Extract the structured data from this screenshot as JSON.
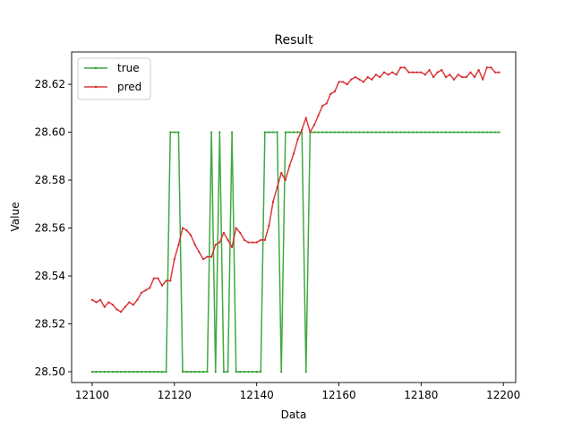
{
  "chart_data": {
    "type": "line",
    "title": "Result",
    "xlabel": "Data",
    "ylabel": "Value",
    "xlim": [
      12095,
      12203
    ],
    "ylim": [
      28.4955,
      28.6335
    ],
    "xticks": [
      12100,
      12120,
      12140,
      12160,
      12180,
      12200
    ],
    "xtick_labels": [
      "12100",
      "12120",
      "12140",
      "12160",
      "12180",
      "12200"
    ],
    "yticks": [
      28.5,
      28.52,
      28.54,
      28.56,
      28.58,
      28.6,
      28.62
    ],
    "ytick_labels": [
      "28.50",
      "28.52",
      "28.54",
      "28.56",
      "28.58",
      "28.60",
      "28.62"
    ],
    "grid": false,
    "legend_position": "upper-left",
    "x_start": 12100,
    "series": [
      {
        "name": "true",
        "color": "#2ca02c",
        "values": [
          28.5,
          28.5,
          28.5,
          28.5,
          28.5,
          28.5,
          28.5,
          28.5,
          28.5,
          28.5,
          28.5,
          28.5,
          28.5,
          28.5,
          28.5,
          28.5,
          28.5,
          28.5,
          28.5,
          28.6,
          28.6,
          28.6,
          28.5,
          28.5,
          28.5,
          28.5,
          28.5,
          28.5,
          28.5,
          28.6,
          28.5,
          28.6,
          28.5,
          28.5,
          28.6,
          28.5,
          28.5,
          28.5,
          28.5,
          28.5,
          28.5,
          28.5,
          28.6,
          28.6,
          28.6,
          28.6,
          28.5,
          28.6,
          28.6,
          28.6,
          28.6,
          28.6,
          28.5,
          28.6,
          28.6,
          28.6,
          28.6,
          28.6,
          28.6,
          28.6,
          28.6,
          28.6,
          28.6,
          28.6,
          28.6,
          28.6,
          28.6,
          28.6,
          28.6,
          28.6,
          28.6,
          28.6,
          28.6,
          28.6,
          28.6,
          28.6,
          28.6,
          28.6,
          28.6,
          28.6,
          28.6,
          28.6,
          28.6,
          28.6,
          28.6,
          28.6,
          28.6,
          28.6,
          28.6,
          28.6,
          28.6,
          28.6,
          28.6,
          28.6,
          28.6,
          28.6,
          28.6,
          28.6,
          28.6,
          28.6
        ]
      },
      {
        "name": "pred",
        "color": "#d62728",
        "values": [
          28.53,
          28.529,
          28.53,
          28.527,
          28.529,
          28.528,
          28.526,
          28.525,
          28.527,
          28.529,
          28.528,
          28.53,
          28.533,
          28.534,
          28.535,
          28.539,
          28.539,
          28.536,
          28.538,
          28.538,
          28.547,
          28.553,
          28.56,
          28.559,
          28.557,
          28.553,
          28.55,
          28.547,
          28.548,
          28.548,
          28.553,
          28.554,
          28.558,
          28.555,
          28.552,
          28.56,
          28.558,
          28.555,
          28.554,
          28.554,
          28.554,
          28.555,
          28.555,
          28.561,
          28.571,
          28.577,
          28.583,
          28.58,
          28.586,
          28.591,
          28.597,
          28.601,
          28.606,
          28.6,
          28.603,
          28.607,
          28.611,
          28.612,
          28.616,
          28.617,
          28.621,
          28.621,
          28.62,
          28.622,
          28.623,
          28.622,
          28.621,
          28.623,
          28.622,
          28.624,
          28.623,
          28.625,
          28.624,
          28.625,
          28.624,
          28.627,
          28.627,
          28.625,
          28.625,
          28.625,
          28.625,
          28.624,
          28.626,
          28.623,
          28.625,
          28.626,
          28.623,
          28.624,
          28.622,
          28.624,
          28.623,
          28.623,
          28.625,
          28.623,
          28.626,
          28.622,
          28.627,
          28.627,
          28.625,
          28.625
        ]
      }
    ]
  }
}
